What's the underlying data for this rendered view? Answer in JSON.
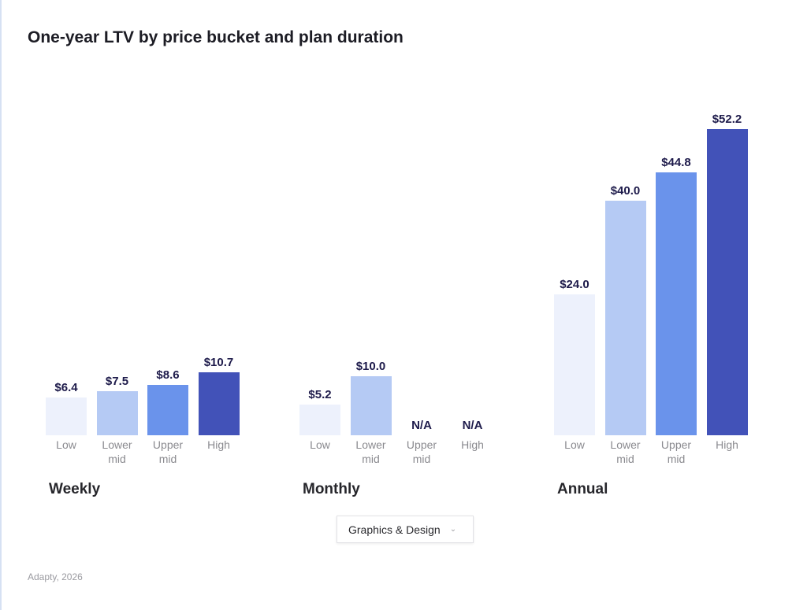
{
  "title": "One-year LTV by price bucket and plan duration",
  "chart_data": {
    "type": "bar",
    "title": "One-year LTV by price bucket and plan duration",
    "categories": [
      "Low",
      "Lower mid",
      "Upper mid",
      "High"
    ],
    "category_labels": [
      [
        "Low"
      ],
      [
        "Lower",
        "mid"
      ],
      [
        "Upper",
        "mid"
      ],
      [
        "High"
      ]
    ],
    "groups": [
      {
        "name": "Weekly",
        "values": [
          6.4,
          7.5,
          8.6,
          10.7
        ],
        "labels": [
          "$6.4",
          "$7.5",
          "$8.6",
          "$10.7"
        ]
      },
      {
        "name": "Monthly",
        "values": [
          5.2,
          10.0,
          null,
          null
        ],
        "labels": [
          "$5.2",
          "$10.0",
          "N/A",
          "N/A"
        ]
      },
      {
        "name": "Annual",
        "values": [
          24.0,
          40.0,
          44.8,
          52.2
        ],
        "labels": [
          "$24.0",
          "$40.0",
          "$44.8",
          "$52.2"
        ]
      }
    ],
    "colors": [
      "#edf1fc",
      "#b5caf4",
      "#6a93eb",
      "#4252b8"
    ],
    "ylim": [
      0,
      52.2
    ],
    "grid": false,
    "legend": "none"
  },
  "filter": {
    "selected": "Graphics & Design",
    "icon": "chevron-down-icon"
  },
  "source": "Adapty, 2026"
}
